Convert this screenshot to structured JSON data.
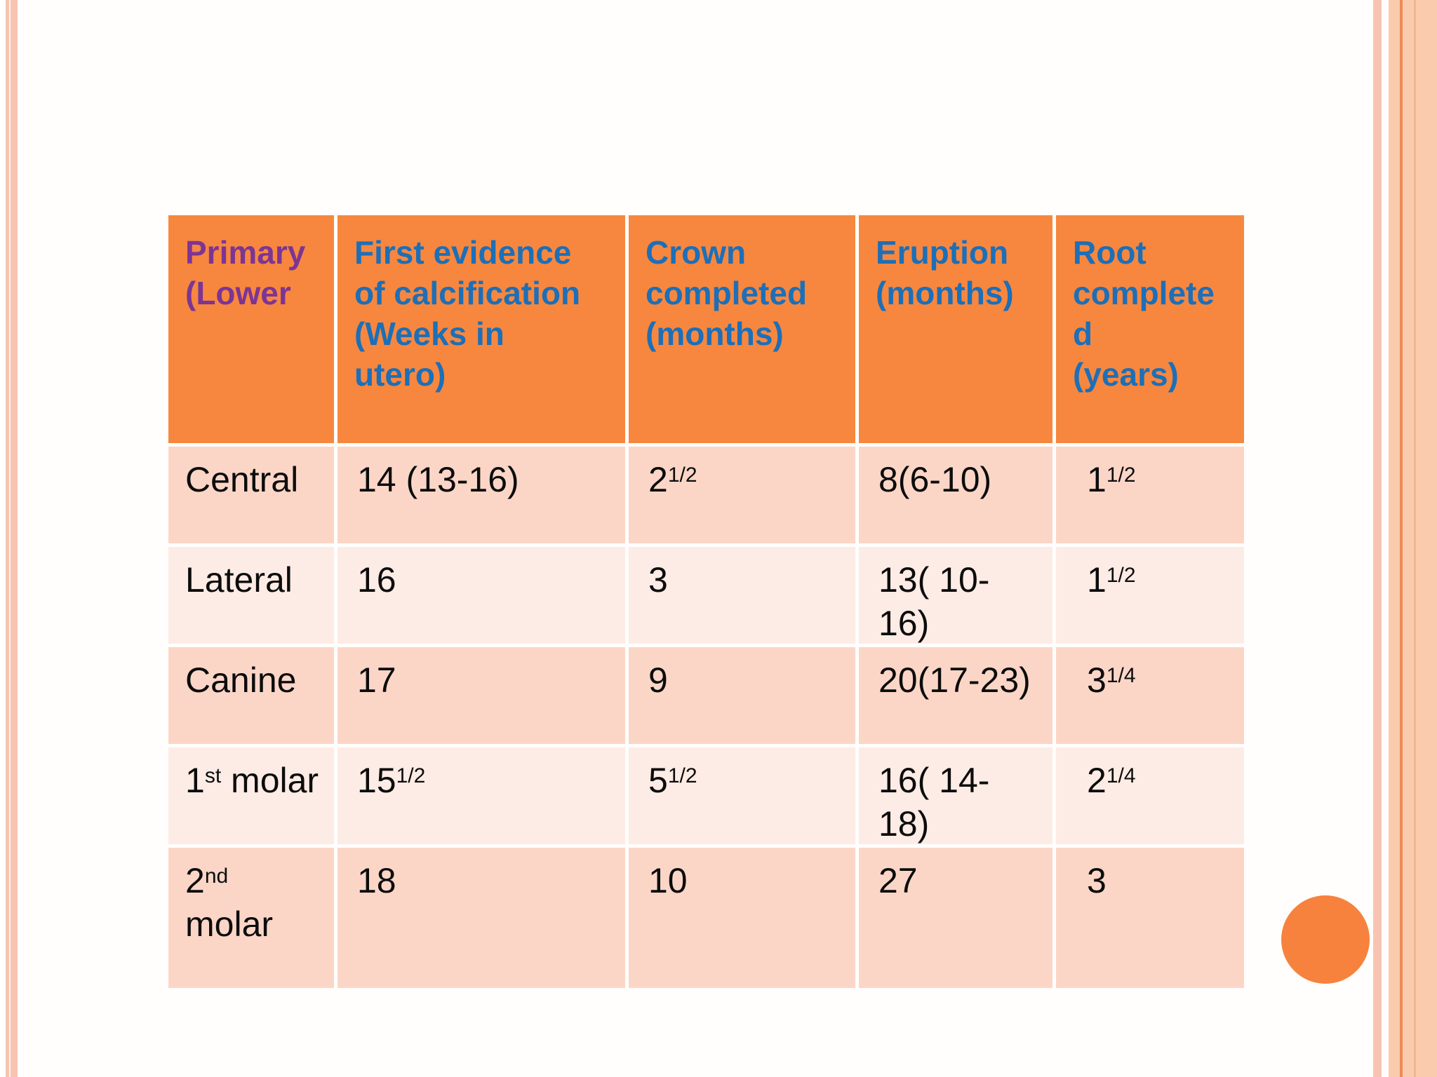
{
  "theme": {
    "header_fill": "#f7873e",
    "header_text_blue": "#1c6fb8",
    "header_text_purple": "#7c3594",
    "row_fill_dark": "#fbd6c7",
    "row_fill_light": "#fdece5",
    "side_stripe_pink": "#f8c4b1",
    "side_band_peach": "#fbcbae",
    "side_band_line": "#ee8c55",
    "accent_circle": "#f6823d"
  },
  "table": {
    "headers": [
      {
        "text": "Primary\n(Lower"
      },
      {
        "text": "First evidence\nof calcification\n(Weeks in\nutero)"
      },
      {
        "text": "Crown\ncompleted\n(months)"
      },
      {
        "text": "Eruption\n(months)"
      },
      {
        "text": "Root\ncomplete\nd\n(years)"
      }
    ],
    "rows": [
      {
        "cells": [
          [
            {
              "t": "Central"
            }
          ],
          [
            {
              "t": "14 (13-16)"
            }
          ],
          [
            {
              "t": "2"
            },
            {
              "t": "1/2",
              "sup": true
            }
          ],
          [
            {
              "t": "8(6-10)"
            }
          ],
          [
            {
              "t": "1"
            },
            {
              "t": "1/2",
              "sup": true
            }
          ]
        ]
      },
      {
        "cells": [
          [
            {
              "t": "Lateral"
            }
          ],
          [
            {
              "t": "16"
            }
          ],
          [
            {
              "t": "3"
            }
          ],
          [
            {
              "t": "13( 10-\n16)"
            }
          ],
          [
            {
              "t": "1"
            },
            {
              "t": "1/2",
              "sup": true
            }
          ]
        ]
      },
      {
        "cells": [
          [
            {
              "t": "Canine"
            }
          ],
          [
            {
              "t": "17"
            }
          ],
          [
            {
              "t": "9"
            }
          ],
          [
            {
              "t": "20(17-23)"
            }
          ],
          [
            {
              "t": "3"
            },
            {
              "t": "1/4",
              "sup": true
            }
          ]
        ]
      },
      {
        "cells": [
          [
            {
              "t": "1"
            },
            {
              "t": "st",
              "sup": true
            },
            {
              "t": " molar"
            }
          ],
          [
            {
              "t": "15"
            },
            {
              "t": "1/2",
              "sup": true
            }
          ],
          [
            {
              "t": "5"
            },
            {
              "t": "1/2",
              "sup": true
            }
          ],
          [
            {
              "t": "16( 14-\n18)"
            }
          ],
          [
            {
              "t": "2"
            },
            {
              "t": "1/4",
              "sup": true
            }
          ]
        ]
      },
      {
        "cells": [
          [
            {
              "t": "2"
            },
            {
              "t": "nd",
              "sup": true
            },
            {
              "t": "\nmolar"
            }
          ],
          [
            {
              "t": "18"
            }
          ],
          [
            {
              "t": "10"
            }
          ],
          [
            {
              "t": "27"
            }
          ],
          [
            {
              "t": "3"
            }
          ]
        ]
      }
    ]
  }
}
